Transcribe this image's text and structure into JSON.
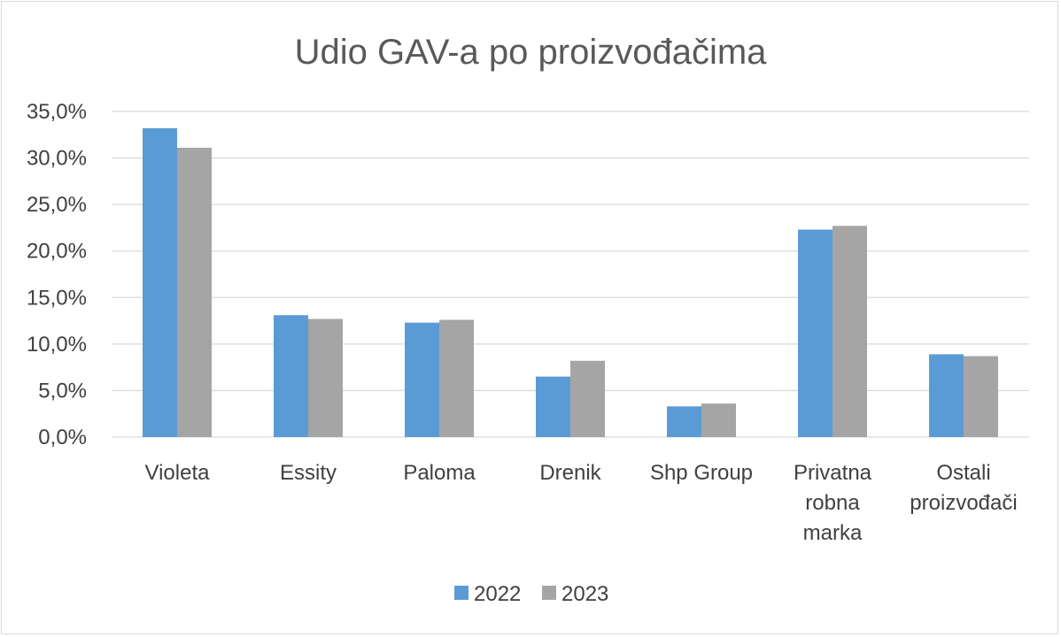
{
  "chart_data": {
    "type": "bar",
    "title": "Udio GAV-a po proizvođačima",
    "xlabel": "",
    "ylabel": "",
    "categories": [
      [
        "Violeta"
      ],
      [
        "Essity"
      ],
      [
        "Paloma"
      ],
      [
        "Drenik"
      ],
      [
        "Shp Group"
      ],
      [
        "Privatna",
        "robna",
        "marka"
      ],
      [
        "Ostali",
        "proizvođači"
      ]
    ],
    "series": [
      {
        "name": "2022",
        "color": "#5B9BD5",
        "values": [
          33.2,
          13.1,
          12.3,
          6.5,
          3.3,
          22.3,
          8.9
        ]
      },
      {
        "name": "2023",
        "color": "#A5A5A5",
        "values": [
          31.1,
          12.7,
          12.6,
          8.2,
          3.6,
          22.7,
          8.7
        ]
      }
    ],
    "ylim": [
      0,
      35
    ],
    "yticks": [
      "0,0%",
      "5,0%",
      "10,0%",
      "15,0%",
      "20,0%",
      "25,0%",
      "30,0%",
      "35,0%"
    ],
    "gridlines": true,
    "gridline_color": "#d9d9d9",
    "legend_position": "bottom"
  }
}
